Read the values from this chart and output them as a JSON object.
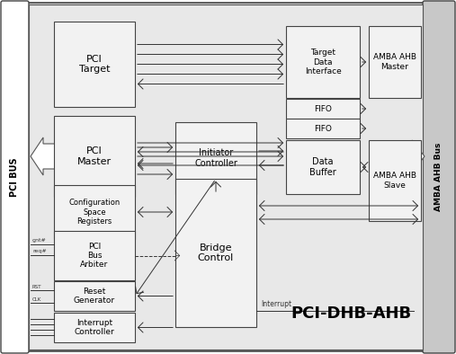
{
  "fig_width": 5.07,
  "fig_height": 3.94,
  "dpi": 100,
  "bg_color": "#ffffff",
  "outer_bg": "#d8d8d8",
  "block_fill": "#f2f2f2",
  "block_edge": "#444444",
  "title": "PCI-DHB-AHB",
  "pci_bus_label": "PCI BUS",
  "amba_bus_label": "AMBA AHB Bus",
  "interrupt_label": "Interrupt"
}
